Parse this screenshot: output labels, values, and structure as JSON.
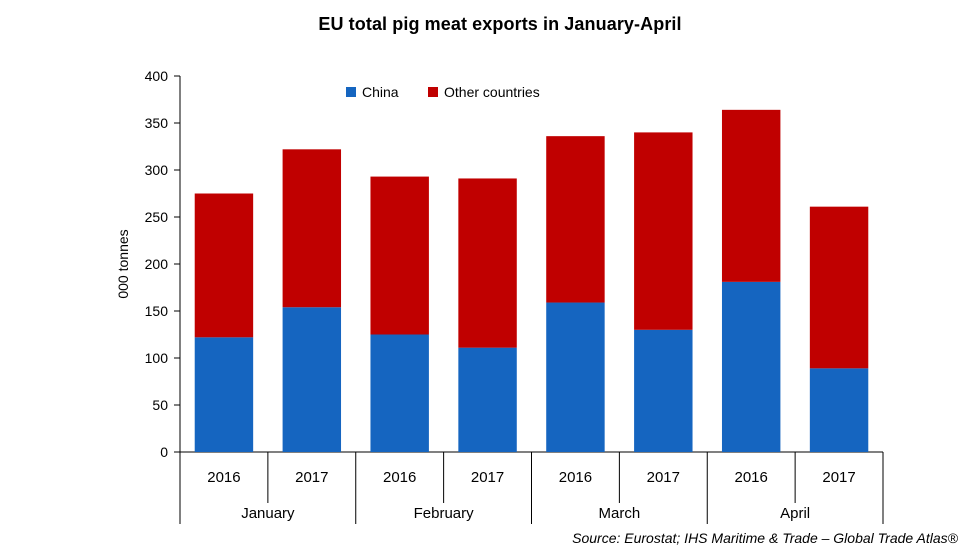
{
  "title": "EU total pig meat exports in January-April",
  "source": "Source: Eurostat; IHS Maritime & Trade – Global Trade Atlas®",
  "chart_data": {
    "type": "bar",
    "stacked": true,
    "title": "EU total pig meat exports in January-April",
    "ylabel": "000 tonnes",
    "xlabel": "",
    "ylim": [
      0,
      400
    ],
    "yticks": [
      0,
      50,
      100,
      150,
      200,
      250,
      300,
      350,
      400
    ],
    "groups": [
      "January",
      "February",
      "March",
      "April"
    ],
    "categories": [
      "2016",
      "2017",
      "2016",
      "2017",
      "2016",
      "2017",
      "2016",
      "2017"
    ],
    "series": [
      {
        "name": "China",
        "color": "#1565C0",
        "values": [
          122,
          154,
          125,
          111,
          159,
          130,
          181,
          89
        ]
      },
      {
        "name": "Other countries",
        "color": "#C00000",
        "values": [
          153,
          168,
          168,
          180,
          177,
          210,
          183,
          172
        ]
      }
    ],
    "legend_position": "top-center",
    "grid": false
  }
}
